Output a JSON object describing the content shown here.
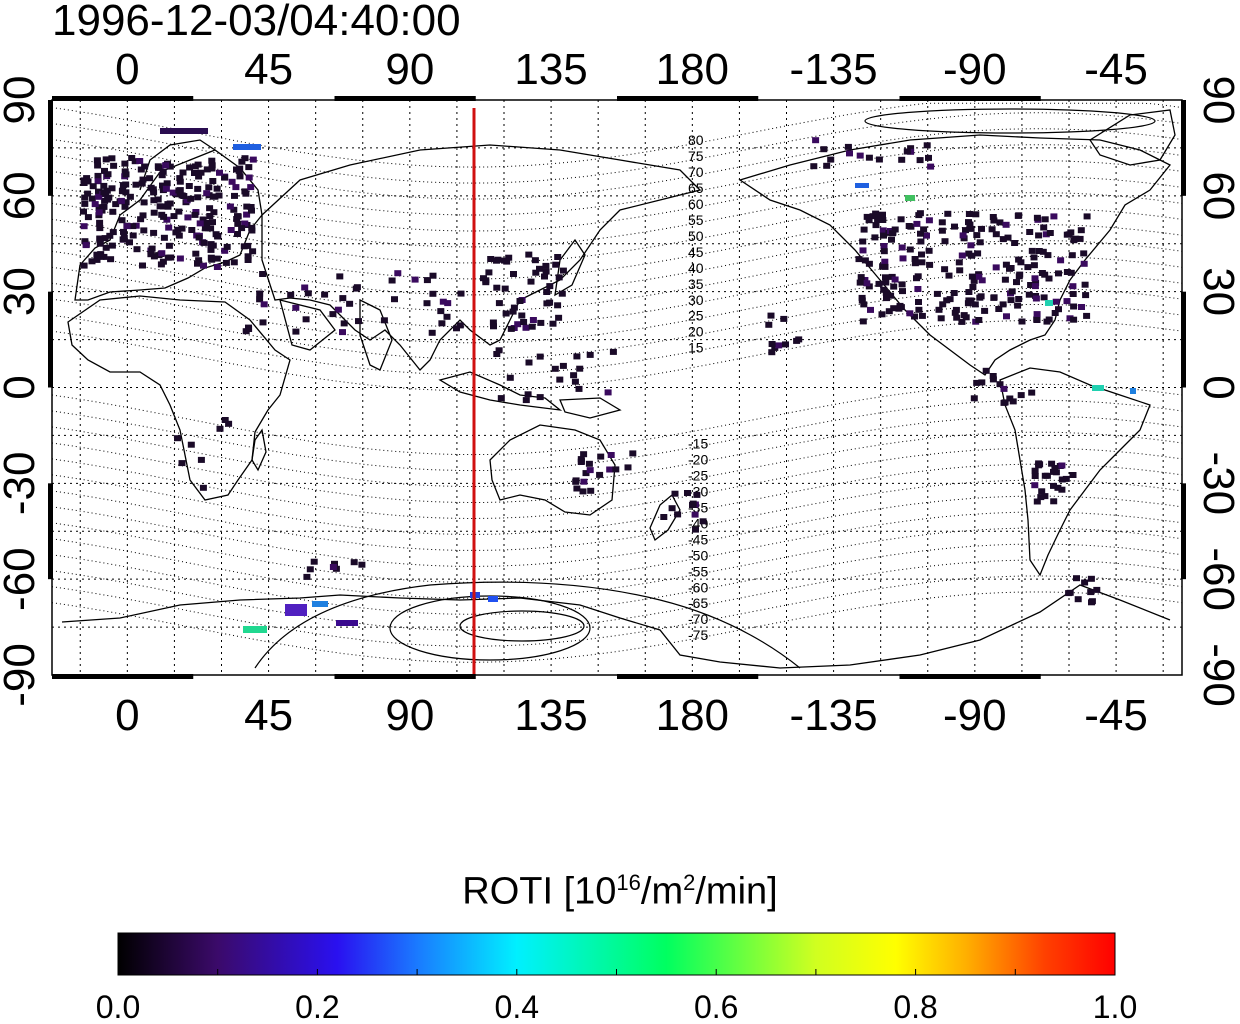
{
  "title": "1996-12-03/04:40:00",
  "map": {
    "top_lon_labels": [
      "0",
      "45",
      "90",
      "135",
      "180",
      "-135",
      "-90",
      "-45"
    ],
    "bottom_lon_labels": [
      "0",
      "45",
      "90",
      "135",
      "180",
      "-135",
      "-90",
      "-45"
    ],
    "left_lat_labels": [
      "90",
      "60",
      "30",
      "0",
      "-30",
      "-60",
      "-90"
    ],
    "right_lat_labels": [
      "90",
      "60",
      "30",
      "0",
      "-30",
      "-60",
      "-90"
    ],
    "magnetic_lat_labels_north": [
      "80",
      "75",
      "70",
      "65",
      "60",
      "55",
      "50",
      "45",
      "40",
      "35",
      "30",
      "25",
      "20",
      "15"
    ],
    "magnetic_lat_labels_south": [
      "-15",
      "-20",
      "-25",
      "-30",
      "-35",
      "-40",
      "-45",
      "-50",
      "-55",
      "-60",
      "-65",
      "-70",
      "-75"
    ],
    "sun_meridian_lon": 110,
    "sun_meridian_color": "#d01010"
  },
  "colorbar": {
    "title_main": "ROTI  [10",
    "title_sup1": "16",
    "title_mid": "/m",
    "title_sup2": "2",
    "title_end": "/min]",
    "tick_labels": [
      "0.0",
      "0.2",
      "0.4",
      "0.6",
      "0.8",
      "1.0"
    ],
    "range": [
      0.0,
      1.0
    ]
  }
}
